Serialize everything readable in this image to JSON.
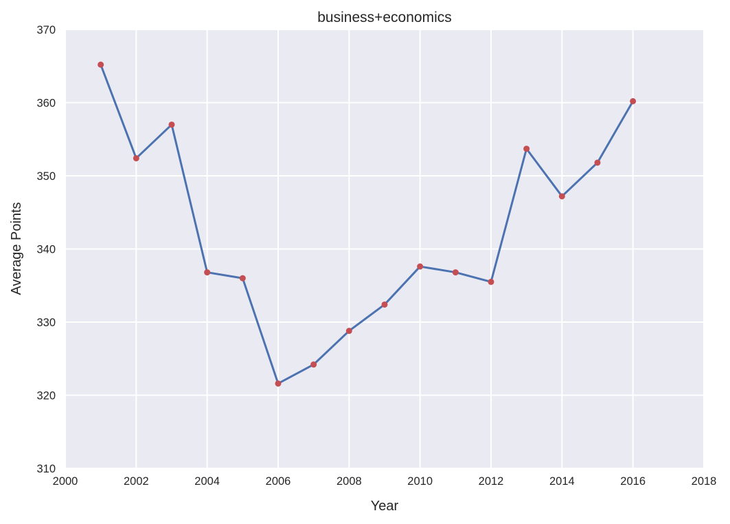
{
  "chart_data": {
    "type": "line",
    "title": "business+economics",
    "xlabel": "Year",
    "ylabel": "Average Points",
    "xlim": [
      2000,
      2018
    ],
    "ylim": [
      310,
      370
    ],
    "xticks": [
      2000,
      2002,
      2004,
      2006,
      2008,
      2010,
      2012,
      2014,
      2016,
      2018
    ],
    "yticks": [
      310,
      320,
      330,
      340,
      350,
      360,
      370
    ],
    "grid": true,
    "series": [
      {
        "x": [
          2001,
          2002,
          2003,
          2004,
          2005,
          2006,
          2007,
          2008,
          2009,
          2010,
          2011,
          2012,
          2013,
          2014,
          2015,
          2016
        ],
        "y": [
          365.2,
          352.4,
          357.0,
          336.8,
          336.0,
          321.6,
          324.2,
          328.8,
          332.4,
          337.6,
          336.8,
          335.5,
          353.7,
          347.2,
          351.8,
          360.2
        ]
      }
    ],
    "colors": {
      "background": "#EAEAF2",
      "grid": "#FFFFFF",
      "line": "#4C72B0",
      "marker": "#C44E52",
      "text": "#262626"
    }
  }
}
